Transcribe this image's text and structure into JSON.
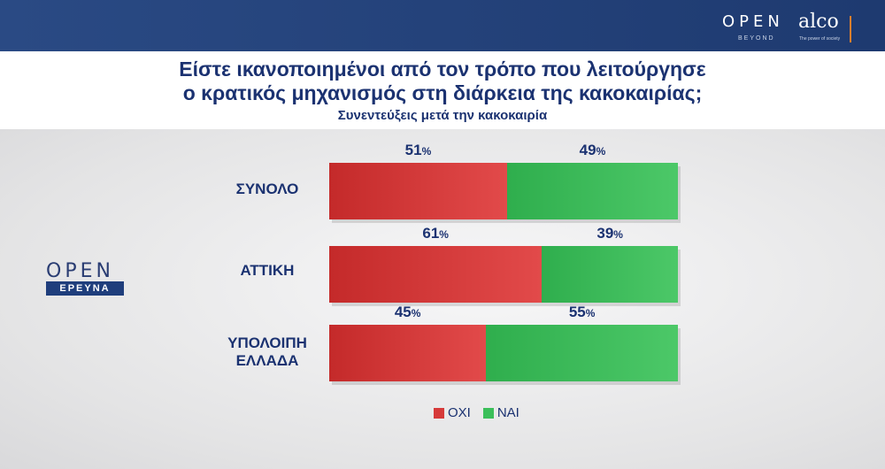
{
  "brand": {
    "open": "OPEN",
    "beyond": "BEYOND",
    "alco": "alco",
    "alco_tagline": "The power of society"
  },
  "logo": {
    "open": "OPEN",
    "ereyna": "ΕΡΕΥΝΑ"
  },
  "header": {
    "title_line1": "Είστε ικανοποιημένοι από τον τρόπο που λειτούργησε",
    "title_line2": "ο κρατικός μηχανισμός στη διάρκεια της κακοκαιρίας;",
    "subtitle": "Συνεντεύξεις μετά την κακοκαιρία"
  },
  "chart_data": {
    "type": "bar",
    "orientation": "horizontal-stacked",
    "categories": [
      "ΣΥΝΟΛΟ",
      "ΑΤΤΙΚΗ",
      "ΥΠΟΛΟΙΠΗ ΕΛΛΑΔΑ"
    ],
    "series": [
      {
        "name": "ΟΧΙ",
        "values": [
          51,
          61,
          45
        ],
        "color": "#d63a3a"
      },
      {
        "name": "ΝΑΙ",
        "values": [
          49,
          39,
          55
        ],
        "color": "#3bbf5a"
      }
    ],
    "value_suffix": "%",
    "xlim": [
      0,
      100
    ],
    "legend": "bottom"
  }
}
